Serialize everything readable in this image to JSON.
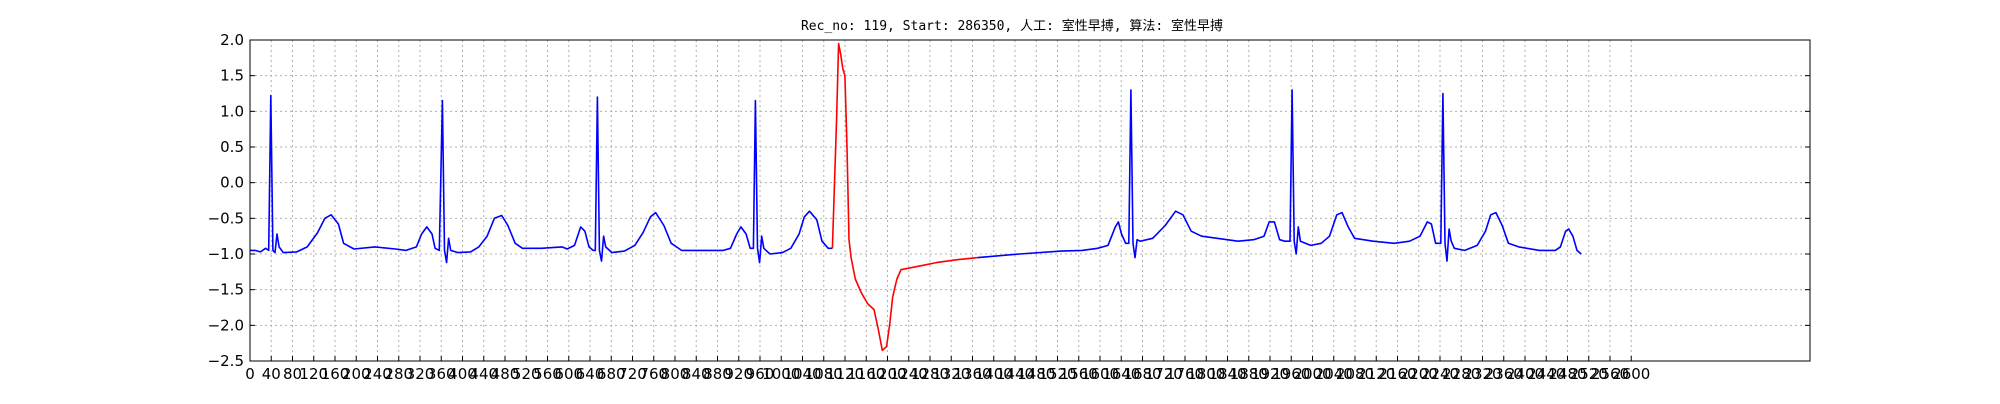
{
  "chart_data": {
    "type": "line",
    "title": "Rec_no: 119, Start: 286350, 人工: 室性早搏, 算法: 室性早搏",
    "xlabel": "",
    "ylabel": "",
    "xlim": [
      0,
      1500
    ],
    "ylim": [
      -2.5,
      2.0
    ],
    "grid": true,
    "x_tick_labels": [
      "0",
      "40",
      "80",
      "120",
      "160",
      "200",
      "240",
      "280",
      "320",
      "360",
      "400",
      "440",
      "480",
      "520",
      "560",
      "600",
      "640",
      "680",
      "720",
      "760",
      "800",
      "840",
      "880",
      "920",
      "960",
      "1000",
      "1040",
      "1080",
      "1120",
      "1160",
      "1200",
      "1240",
      "1280",
      "1320",
      "1360",
      "1400",
      "1440",
      "1480",
      "1520",
      "1560",
      "1600",
      "1640",
      "1680",
      "1720",
      "1760",
      "1800",
      "1840",
      "1880",
      "1920",
      "1960",
      "2000",
      "2040",
      "2080",
      "2120",
      "2160",
      "2200",
      "2240",
      "2280",
      "2320",
      "2360",
      "2400",
      "2440",
      "2480",
      "2520",
      "2560",
      "2600"
    ],
    "y_ticks": [
      2.0,
      1.5,
      1.0,
      0.5,
      0.0,
      -0.5,
      -1.0,
      -1.5,
      -2.0,
      -2.5
    ],
    "y_tick_labels": [
      "2.0",
      "1.5",
      "1.0",
      "0.5",
      "0.0",
      "−0.5",
      "−1.0",
      "−1.5",
      "−2.0",
      "−2.5"
    ],
    "series": [
      {
        "color": "#0000ff",
        "segments": [
          [
            [
              0,
              -0.95
            ],
            [
              5,
              -0.95
            ],
            [
              10,
              -0.97
            ],
            [
              15,
              -0.92
            ],
            [
              18,
              -0.95
            ],
            [
              20,
              1.22
            ],
            [
              22,
              -0.95
            ],
            [
              24,
              -0.98
            ],
            [
              26,
              -0.72
            ],
            [
              28,
              -0.9
            ],
            [
              32,
              -0.98
            ],
            [
              45,
              -0.97
            ],
            [
              55,
              -0.9
            ],
            [
              65,
              -0.7
            ],
            [
              72,
              -0.5
            ],
            [
              78,
              -0.45
            ],
            [
              85,
              -0.58
            ],
            [
              90,
              -0.85
            ],
            [
              100,
              -0.93
            ],
            [
              120,
              -0.9
            ],
            [
              140,
              -0.93
            ],
            [
              150,
              -0.95
            ],
            [
              160,
              -0.9
            ],
            [
              165,
              -0.72
            ],
            [
              170,
              -0.62
            ],
            [
              175,
              -0.72
            ],
            [
              178,
              -0.92
            ],
            [
              182,
              -0.95
            ],
            [
              185,
              1.15
            ],
            [
              187,
              -0.95
            ],
            [
              189,
              -1.12
            ],
            [
              191,
              -0.78
            ],
            [
              193,
              -0.95
            ],
            [
              200,
              -0.98
            ],
            [
              212,
              -0.97
            ],
            [
              220,
              -0.9
            ],
            [
              228,
              -0.75
            ],
            [
              235,
              -0.5
            ],
            [
              242,
              -0.46
            ],
            [
              248,
              -0.6
            ],
            [
              255,
              -0.85
            ],
            [
              262,
              -0.92
            ],
            [
              280,
              -0.92
            ],
            [
              300,
              -0.9
            ],
            [
              305,
              -0.93
            ],
            [
              312,
              -0.88
            ],
            [
              318,
              -0.62
            ],
            [
              322,
              -0.68
            ],
            [
              326,
              -0.9
            ],
            [
              330,
              -0.95
            ],
            [
              332,
              -0.95
            ],
            [
              334,
              1.2
            ],
            [
              336,
              -0.95
            ],
            [
              338,
              -1.1
            ],
            [
              340,
              -0.75
            ],
            [
              342,
              -0.9
            ],
            [
              348,
              -0.98
            ],
            [
              360,
              -0.96
            ],
            [
              370,
              -0.88
            ],
            [
              378,
              -0.7
            ],
            [
              385,
              -0.48
            ],
            [
              390,
              -0.42
            ],
            [
              398,
              -0.6
            ],
            [
              405,
              -0.85
            ],
            [
              415,
              -0.95
            ],
            [
              440,
              -0.95
            ],
            [
              455,
              -0.95
            ],
            [
              462,
              -0.92
            ],
            [
              468,
              -0.72
            ],
            [
              472,
              -0.62
            ],
            [
              477,
              -0.72
            ],
            [
              481,
              -0.92
            ],
            [
              484,
              -0.92
            ],
            [
              486,
              1.15
            ],
            [
              488,
              -0.92
            ],
            [
              490,
              -1.12
            ],
            [
              492,
              -0.75
            ],
            [
              494,
              -0.92
            ],
            [
              500,
              -1.0
            ],
            [
              512,
              -0.98
            ],
            [
              520,
              -0.92
            ],
            [
              528,
              -0.72
            ],
            [
              533,
              -0.48
            ],
            [
              538,
              -0.4
            ],
            [
              545,
              -0.52
            ],
            [
              550,
              -0.82
            ],
            [
              556,
              -0.92
            ],
            [
              560,
              -0.92
            ]
          ]
        ]
      },
      {
        "color": "#ff0000",
        "segments": [
          [
            [
              560,
              -0.92
            ],
            [
              564,
              0.9
            ],
            [
              566,
              1.95
            ],
            [
              568,
              1.8
            ],
            [
              570,
              1.6
            ],
            [
              572,
              1.5
            ],
            [
              574,
              0.5
            ],
            [
              576,
              -0.8
            ],
            [
              578,
              -1.05
            ],
            [
              582,
              -1.35
            ],
            [
              588,
              -1.55
            ],
            [
              594,
              -1.7
            ],
            [
              600,
              -1.78
            ],
            [
              604,
              -2.05
            ],
            [
              608,
              -2.35
            ],
            [
              612,
              -2.3
            ],
            [
              615,
              -2.0
            ],
            [
              618,
              -1.6
            ],
            [
              622,
              -1.35
            ],
            [
              626,
              -1.22
            ],
            [
              640,
              -1.18
            ],
            [
              660,
              -1.12
            ],
            [
              680,
              -1.08
            ],
            [
              700,
              -1.05
            ]
          ]
        ]
      },
      {
        "color": "#0000ff",
        "segments": [
          [
            [
              700,
              -1.05
            ],
            [
              740,
              -1.0
            ],
            [
              780,
              -0.96
            ],
            [
              800,
              -0.95
            ],
            [
              815,
              -0.92
            ],
            [
              825,
              -0.88
            ],
            [
              832,
              -0.62
            ],
            [
              835,
              -0.55
            ],
            [
              838,
              -0.72
            ],
            [
              842,
              -0.85
            ],
            [
              845,
              -0.85
            ],
            [
              847,
              1.3
            ],
            [
              849,
              -0.85
            ],
            [
              851,
              -1.05
            ],
            [
              853,
              -0.8
            ],
            [
              856,
              -0.82
            ],
            [
              868,
              -0.78
            ],
            [
              880,
              -0.6
            ],
            [
              890,
              -0.4
            ],
            [
              897,
              -0.45
            ],
            [
              905,
              -0.68
            ],
            [
              915,
              -0.75
            ],
            [
              930,
              -0.78
            ],
            [
              950,
              -0.82
            ],
            [
              965,
              -0.8
            ],
            [
              975,
              -0.75
            ],
            [
              980,
              -0.55
            ],
            [
              985,
              -0.55
            ],
            [
              990,
              -0.8
            ],
            [
              995,
              -0.82
            ],
            [
              1000,
              -0.82
            ],
            [
              1002,
              1.3
            ],
            [
              1004,
              -0.82
            ],
            [
              1006,
              -1.0
            ],
            [
              1008,
              -0.62
            ],
            [
              1010,
              -0.82
            ],
            [
              1020,
              -0.88
            ],
            [
              1030,
              -0.85
            ],
            [
              1038,
              -0.75
            ],
            [
              1045,
              -0.45
            ],
            [
              1050,
              -0.42
            ],
            [
              1056,
              -0.62
            ],
            [
              1062,
              -0.78
            ],
            [
              1080,
              -0.82
            ],
            [
              1100,
              -0.85
            ],
            [
              1115,
              -0.82
            ],
            [
              1125,
              -0.75
            ],
            [
              1132,
              -0.55
            ],
            [
              1136,
              -0.58
            ],
            [
              1140,
              -0.85
            ],
            [
              1145,
              -0.85
            ],
            [
              1147,
              1.25
            ],
            [
              1149,
              -0.85
            ],
            [
              1151,
              -1.1
            ],
            [
              1153,
              -0.65
            ],
            [
              1155,
              -0.82
            ],
            [
              1158,
              -0.92
            ],
            [
              1168,
              -0.95
            ],
            [
              1180,
              -0.88
            ],
            [
              1188,
              -0.68
            ],
            [
              1193,
              -0.45
            ],
            [
              1198,
              -0.42
            ],
            [
              1204,
              -0.6
            ],
            [
              1210,
              -0.85
            ],
            [
              1220,
              -0.9
            ],
            [
              1240,
              -0.95
            ],
            [
              1255,
              -0.95
            ],
            [
              1260,
              -0.9
            ],
            [
              1265,
              -0.68
            ],
            [
              1268,
              -0.65
            ],
            [
              1272,
              -0.75
            ],
            [
              1276,
              -0.95
            ],
            [
              1280,
              -1.0
            ]
          ]
        ]
      }
    ]
  }
}
